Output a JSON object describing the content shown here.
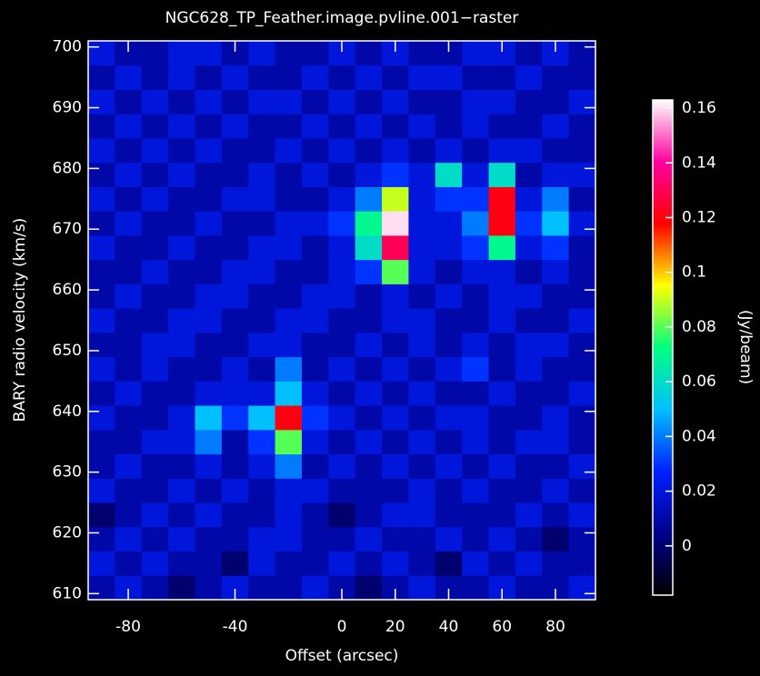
{
  "chart_data": {
    "type": "heatmap",
    "title": "NGC628_TP_Feather.image.pvline.001−raster",
    "x_label": "Offset (arcsec)",
    "y_label": "BARY radio velocity  (km/s)",
    "colorbar_label": "(Jy/beam)",
    "xlim": [
      -95,
      95
    ],
    "ylim": [
      609,
      701
    ],
    "xticks": [
      -80,
      -40,
      0,
      20,
      40,
      60,
      80
    ],
    "yticks": [
      610,
      620,
      630,
      640,
      650,
      660,
      670,
      680,
      690,
      700
    ],
    "clim": [
      -0.018,
      0.163
    ],
    "cticks": [
      0,
      0.02,
      0.04,
      0.06,
      0.08,
      0.1,
      0.12,
      0.14,
      0.16
    ],
    "colormap": [
      "#000000",
      "#00008c",
      "#0020ff",
      "#00c0ff",
      "#00ff80",
      "#ffff00",
      "#ff0000",
      "#ff00a0",
      "#ffffff"
    ],
    "x": [
      -90,
      -80,
      -70,
      -60,
      -50,
      -40,
      -30,
      -20,
      -10,
      0,
      10,
      20,
      30,
      40,
      50,
      60,
      70,
      80,
      90
    ],
    "y": [
      611,
      615,
      619,
      623,
      627,
      631,
      635,
      639,
      643,
      647,
      651,
      655,
      659,
      663,
      667,
      671,
      675,
      679,
      683,
      687,
      691,
      695,
      699
    ],
    "z": [
      [
        0.01,
        0.02,
        0.01,
        0.0,
        0.01,
        0.02,
        0.01,
        0.01,
        0.02,
        0.01,
        0.0,
        0.01,
        0.02,
        0.01,
        0.01,
        0.02,
        0.01,
        0.01,
        0.02
      ],
      [
        0.02,
        0.01,
        0.02,
        0.01,
        0.01,
        0.0,
        0.02,
        0.01,
        0.01,
        0.02,
        0.01,
        0.02,
        0.01,
        0.0,
        0.02,
        0.01,
        0.02,
        0.01,
        0.01
      ],
      [
        0.01,
        0.02,
        0.01,
        0.02,
        0.01,
        0.01,
        0.02,
        0.02,
        0.01,
        0.01,
        0.02,
        0.01,
        0.01,
        0.02,
        0.01,
        0.02,
        0.01,
        0.0,
        0.01
      ],
      [
        0.0,
        0.01,
        0.02,
        0.01,
        0.02,
        0.01,
        0.01,
        0.02,
        0.01,
        0.0,
        0.01,
        0.02,
        0.02,
        0.01,
        0.01,
        0.01,
        0.02,
        0.01,
        0.02
      ],
      [
        0.02,
        0.01,
        0.01,
        0.02,
        0.01,
        0.02,
        0.01,
        0.02,
        0.02,
        0.01,
        0.01,
        0.01,
        0.02,
        0.01,
        0.02,
        0.01,
        0.01,
        0.02,
        0.01
      ],
      [
        0.01,
        0.02,
        0.01,
        0.01,
        0.02,
        0.01,
        0.02,
        0.04,
        0.01,
        0.02,
        0.01,
        0.02,
        0.01,
        0.02,
        0.01,
        0.02,
        0.01,
        0.01,
        0.02
      ],
      [
        0.01,
        0.01,
        0.02,
        0.02,
        0.04,
        0.01,
        0.03,
        0.08,
        0.02,
        0.01,
        0.02,
        0.01,
        0.02,
        0.01,
        0.02,
        0.01,
        0.02,
        0.02,
        0.01
      ],
      [
        0.02,
        0.01,
        0.01,
        0.02,
        0.05,
        0.03,
        0.05,
        0.12,
        0.03,
        0.02,
        0.01,
        0.02,
        0.01,
        0.02,
        0.02,
        0.01,
        0.01,
        0.02,
        0.01
      ],
      [
        0.01,
        0.02,
        0.01,
        0.01,
        0.02,
        0.02,
        0.02,
        0.05,
        0.02,
        0.01,
        0.02,
        0.01,
        0.02,
        0.01,
        0.01,
        0.02,
        0.01,
        0.01,
        0.02
      ],
      [
        0.02,
        0.01,
        0.02,
        0.01,
        0.01,
        0.02,
        0.01,
        0.04,
        0.01,
        0.02,
        0.01,
        0.02,
        0.01,
        0.02,
        0.03,
        0.01,
        0.02,
        0.01,
        0.01
      ],
      [
        0.01,
        0.01,
        0.02,
        0.02,
        0.01,
        0.01,
        0.02,
        0.02,
        0.01,
        0.01,
        0.02,
        0.01,
        0.02,
        0.01,
        0.02,
        0.01,
        0.02,
        0.02,
        0.01
      ],
      [
        0.02,
        0.01,
        0.01,
        0.02,
        0.02,
        0.01,
        0.01,
        0.02,
        0.02,
        0.01,
        0.01,
        0.02,
        0.02,
        0.01,
        0.01,
        0.02,
        0.01,
        0.01,
        0.02
      ],
      [
        0.01,
        0.02,
        0.01,
        0.01,
        0.02,
        0.02,
        0.01,
        0.01,
        0.02,
        0.02,
        0.01,
        0.02,
        0.01,
        0.02,
        0.01,
        0.02,
        0.02,
        0.01,
        0.01
      ],
      [
        0.01,
        0.01,
        0.02,
        0.01,
        0.01,
        0.02,
        0.02,
        0.01,
        0.01,
        0.02,
        0.03,
        0.08,
        0.02,
        0.01,
        0.02,
        0.02,
        0.01,
        0.02,
        0.01
      ],
      [
        0.02,
        0.01,
        0.01,
        0.02,
        0.01,
        0.01,
        0.02,
        0.02,
        0.01,
        0.02,
        0.06,
        0.13,
        0.02,
        0.02,
        0.03,
        0.07,
        0.02,
        0.03,
        0.01
      ],
      [
        0.01,
        0.02,
        0.01,
        0.01,
        0.02,
        0.01,
        0.01,
        0.02,
        0.02,
        0.03,
        0.07,
        0.16,
        0.02,
        0.02,
        0.04,
        0.12,
        0.03,
        0.05,
        0.02
      ],
      [
        0.02,
        0.01,
        0.02,
        0.01,
        0.01,
        0.02,
        0.02,
        0.01,
        0.01,
        0.02,
        0.04,
        0.09,
        0.02,
        0.03,
        0.03,
        0.12,
        0.02,
        0.04,
        0.01
      ],
      [
        0.01,
        0.02,
        0.01,
        0.02,
        0.01,
        0.01,
        0.02,
        0.01,
        0.02,
        0.01,
        0.02,
        0.03,
        0.02,
        0.06,
        0.02,
        0.06,
        0.01,
        0.02,
        0.02
      ],
      [
        0.02,
        0.01,
        0.02,
        0.01,
        0.02,
        0.01,
        0.01,
        0.02,
        0.01,
        0.02,
        0.01,
        0.02,
        0.01,
        0.02,
        0.01,
        0.02,
        0.02,
        0.01,
        0.01
      ],
      [
        0.01,
        0.02,
        0.01,
        0.02,
        0.01,
        0.02,
        0.01,
        0.01,
        0.02,
        0.01,
        0.02,
        0.01,
        0.02,
        0.01,
        0.02,
        0.01,
        0.01,
        0.02,
        0.01
      ],
      [
        0.02,
        0.01,
        0.02,
        0.01,
        0.02,
        0.01,
        0.02,
        0.02,
        0.01,
        0.02,
        0.01,
        0.02,
        0.01,
        0.01,
        0.02,
        0.02,
        0.01,
        0.01,
        0.02
      ],
      [
        0.01,
        0.02,
        0.01,
        0.02,
        0.01,
        0.02,
        0.01,
        0.01,
        0.02,
        0.01,
        0.02,
        0.01,
        0.02,
        0.02,
        0.01,
        0.01,
        0.02,
        0.01,
        0.01
      ],
      [
        0.02,
        0.01,
        0.01,
        0.02,
        0.02,
        0.01,
        0.02,
        0.01,
        0.01,
        0.02,
        0.01,
        0.02,
        0.01,
        0.01,
        0.02,
        0.02,
        0.01,
        0.02,
        0.01
      ]
    ]
  }
}
